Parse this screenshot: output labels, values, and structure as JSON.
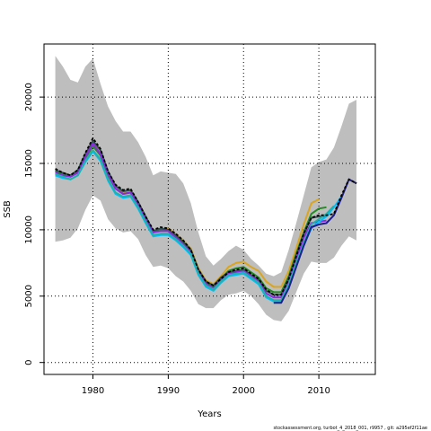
{
  "chart_data": {
    "type": "line",
    "xlabel": "Years",
    "ylabel": "SSB",
    "xlim": [
      1973.5,
      2017.5
    ],
    "ylim": [
      -900,
      24000
    ],
    "x_ticks": [
      1980,
      1990,
      2000,
      2010
    ],
    "y_ticks": [
      0,
      5000,
      10000,
      15000,
      20000
    ],
    "grid": true,
    "band": {
      "x": [
        1975,
        1976,
        1977,
        1978,
        1979,
        1980,
        1981,
        1982,
        1983,
        1984,
        1985,
        1986,
        1987,
        1988,
        1989,
        1990,
        1991,
        1992,
        1993,
        1994,
        1995,
        1996,
        1997,
        1998,
        1999,
        2000,
        2001,
        2002,
        2003,
        2004,
        2005,
        2006,
        2007,
        2008,
        2009,
        2010,
        2011,
        2012,
        2013,
        2014,
        2015
      ],
      "upper": [
        23100,
        22300,
        21300,
        21100,
        22300,
        22900,
        21000,
        19300,
        18200,
        17400,
        17400,
        16600,
        15500,
        14100,
        14400,
        14300,
        14200,
        13500,
        12000,
        9800,
        8000,
        7300,
        7800,
        8400,
        8800,
        8500,
        7800,
        7300,
        6700,
        6500,
        6800,
        8500,
        10500,
        12600,
        14700,
        15100,
        15300,
        16200,
        17800,
        19500,
        19800
      ],
      "lower": [
        9100,
        9200,
        9400,
        10100,
        11500,
        12600,
        12200,
        10800,
        10100,
        9800,
        9900,
        9300,
        8100,
        7200,
        7300,
        7100,
        6500,
        6100,
        5400,
        4400,
        4100,
        4100,
        4700,
        5100,
        5200,
        5400,
        5000,
        4400,
        3600,
        3200,
        3100,
        3900,
        5300,
        6700,
        7600,
        7500,
        7500,
        7900,
        8800,
        9500,
        9200
      ]
    },
    "series": [
      {
        "color": "#daa520",
        "x": [
          1975,
          1976,
          1977,
          1978,
          1979,
          1980,
          1981,
          1982,
          1983,
          1984,
          1985,
          1986,
          1987,
          1988,
          1989,
          1990,
          1991,
          1992,
          1993,
          1994,
          1995,
          1996,
          1997,
          1998,
          1999,
          2000,
          2001,
          2002,
          2003,
          2004,
          2005,
          2006,
          2007,
          2008,
          2009,
          2010
        ],
        "values": [
          14500,
          14300,
          14100,
          14400,
          15500,
          16500,
          15800,
          14200,
          13100,
          12800,
          12900,
          12000,
          10900,
          9900,
          10100,
          10100,
          9700,
          9200,
          8600,
          7100,
          6200,
          5900,
          6500,
          7200,
          7500,
          7600,
          7200,
          6900,
          6100,
          5700,
          5700,
          6900,
          8600,
          10400,
          12000,
          12300
        ]
      },
      {
        "color": "#228b22",
        "x": [
          1975,
          1976,
          1977,
          1978,
          1979,
          1980,
          1981,
          1982,
          1983,
          1984,
          1985,
          1986,
          1987,
          1988,
          1989,
          1990,
          1991,
          1992,
          1993,
          1994,
          1995,
          1996,
          1997,
          1998,
          1999,
          2000,
          2001,
          2002,
          2003,
          2004,
          2005,
          2006,
          2007,
          2008,
          2009,
          2010,
          2011
        ],
        "values": [
          14400,
          14200,
          14000,
          14300,
          15400,
          16300,
          15600,
          14100,
          13100,
          12700,
          12800,
          11900,
          10800,
          9800,
          10000,
          9900,
          9500,
          9000,
          8400,
          6900,
          6000,
          5700,
          6300,
          6900,
          7100,
          7200,
          6800,
          6400,
          5600,
          5300,
          5300,
          6500,
          8200,
          9800,
          11200,
          11600,
          11700
        ]
      },
      {
        "color": "#2f4f4f",
        "x": [
          1975,
          1976,
          1977,
          1978,
          1979,
          1980,
          1981,
          1982,
          1983,
          1984,
          1985,
          1986,
          1987,
          1988,
          1989,
          1990,
          1991,
          1992,
          1993,
          1994,
          1995,
          1996,
          1997,
          1998,
          1999,
          2000,
          2001,
          2002,
          2003,
          2004,
          2005,
          2006,
          2007,
          2008,
          2009,
          2010,
          2011
        ],
        "values": [
          14500,
          14300,
          14100,
          14500,
          15700,
          16700,
          16000,
          14400,
          13300,
          12900,
          13000,
          12100,
          11000,
          9900,
          10100,
          10000,
          9600,
          9100,
          8500,
          7000,
          6100,
          5800,
          6400,
          6800,
          6900,
          7000,
          6600,
          6200,
          5400,
          5100,
          5100,
          6300,
          8000,
          9700,
          10900,
          11000,
          11000
        ]
      },
      {
        "color": "#8a2be2",
        "x": [
          1975,
          1976,
          1977,
          1978,
          1979,
          1980,
          1981,
          1982,
          1983,
          1984,
          1985,
          1986,
          1987,
          1988,
          1989,
          1990,
          1991,
          1992,
          1993,
          1994,
          1995,
          1996,
          1997,
          1998,
          1999,
          2000,
          2001,
          2002,
          2003,
          2004,
          2005,
          2006,
          2007,
          2008,
          2009,
          2010,
          2011
        ],
        "values": [
          14300,
          14100,
          14000,
          14300,
          15500,
          16500,
          15700,
          14200,
          13100,
          12700,
          12800,
          11900,
          10800,
          9800,
          9900,
          9900,
          9400,
          8900,
          8300,
          6800,
          5900,
          5600,
          6200,
          6700,
          6800,
          6900,
          6500,
          6100,
          5200,
          4900,
          4900,
          6100,
          7800,
          9400,
          10500,
          10600,
          10700
        ]
      },
      {
        "color": "#00bfff",
        "x": [
          1975,
          1976,
          1977,
          1978,
          1979,
          1980,
          1981,
          1982,
          1983,
          1984,
          1985,
          1986,
          1987,
          1988,
          1989,
          1990,
          1991,
          1992,
          1993,
          1994,
          1995,
          1996,
          1997,
          1998,
          1999,
          2000,
          2001,
          2002,
          2003,
          2004,
          2005,
          2006,
          2007,
          2008,
          2009,
          2010,
          2011,
          2012,
          2013
        ],
        "values": [
          14100,
          13900,
          13800,
          14100,
          15100,
          15900,
          15200,
          13700,
          12700,
          12400,
          12500,
          11600,
          10500,
          9500,
          9600,
          9600,
          9200,
          8700,
          8100,
          6600,
          5700,
          5400,
          6000,
          6500,
          6600,
          6700,
          6300,
          5900,
          4900,
          4600,
          4600,
          5700,
          7300,
          8800,
          10100,
          10600,
          11000,
          11700,
          12500
        ]
      },
      {
        "color": "#20b2aa",
        "x": [
          1975,
          1976,
          1977,
          1978,
          1979,
          1980,
          1981,
          1982,
          1983,
          1984,
          1985,
          1986,
          1987,
          1988,
          1989,
          1990,
          1991,
          1992,
          1993,
          1994,
          1995,
          1996,
          1997,
          1998,
          1999,
          2000,
          2001,
          2002,
          2003,
          2004,
          2005,
          2006,
          2007,
          2008,
          2009,
          2010,
          2011,
          2012
        ],
        "values": [
          14200,
          14000,
          13800,
          14100,
          15200,
          16000,
          15300,
          13800,
          12800,
          12500,
          12600,
          11700,
          10600,
          9600,
          9700,
          9700,
          9300,
          8800,
          8200,
          6700,
          5800,
          5500,
          6100,
          6600,
          6700,
          6800,
          6400,
          6000,
          5000,
          4700,
          4700,
          5900,
          7500,
          9000,
          10400,
          10800,
          11200,
          11800
        ]
      },
      {
        "color": "#1e1e8c",
        "x": [
          2004,
          2005,
          2006,
          2007,
          2008,
          2009,
          2010,
          2011,
          2012,
          2013,
          2014,
          2015
        ],
        "values": [
          4500,
          4500,
          5600,
          7200,
          8800,
          10200,
          10400,
          10500,
          11100,
          12400,
          13800,
          13500
        ]
      },
      {
        "color": "#000000",
        "dashed": true,
        "x": [
          1975,
          1976,
          1977,
          1978,
          1979,
          1980,
          1981,
          1982,
          1983,
          1984,
          1985,
          1986,
          1987,
          1988,
          1989,
          1990,
          1991,
          1992,
          1993,
          1994,
          1995,
          1996,
          1997,
          1998,
          1999,
          2000,
          2001,
          2002,
          2003,
          2004,
          2005,
          2006,
          2007,
          2008,
          2009,
          2010,
          2011,
          2012,
          2013,
          2014,
          2015
        ],
        "values": [
          14600,
          14300,
          14100,
          14500,
          15800,
          16900,
          16100,
          14400,
          13400,
          13000,
          13100,
          12100,
          11000,
          10000,
          10200,
          10100,
          9700,
          9200,
          8500,
          7000,
          6100,
          5800,
          6300,
          6800,
          7000,
          7100,
          6700,
          6300,
          5500,
          5100,
          5100,
          6300,
          8000,
          9700,
          10900,
          11100,
          11100,
          11200,
          12600,
          13800,
          13500
        ]
      }
    ]
  },
  "footer": "stockassessment.org, turbot_4_2018_001, r9957 , git: a295ef2f11ae"
}
